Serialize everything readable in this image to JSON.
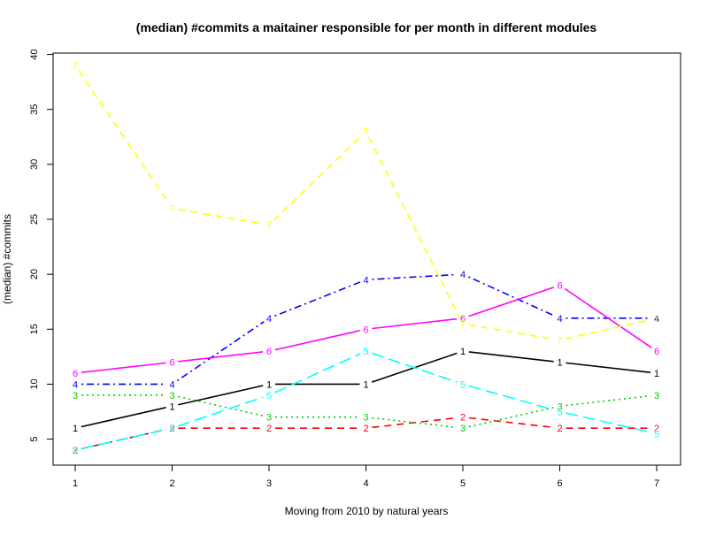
{
  "chart_data": {
    "type": "line",
    "title": "(median) #commits a maitainer responsible for per month in different modules",
    "xlabel": "Moving from 2010 by natural years",
    "ylabel": "(median) #commits",
    "x": [
      1,
      2,
      3,
      4,
      5,
      6,
      7
    ],
    "x_ticks": [
      "1",
      "2",
      "3",
      "4",
      "5",
      "6",
      "7"
    ],
    "y_ticks": [
      "5",
      "10",
      "15",
      "20",
      "25",
      "30",
      "35",
      "40"
    ],
    "xlim": [
      1,
      7
    ],
    "ylim": [
      4,
      39
    ],
    "grid": false,
    "legend": "none",
    "series": [
      {
        "marker": "1",
        "color": "#000000",
        "dash": "solid",
        "values": [
          6,
          8,
          10,
          10,
          13,
          12,
          11
        ]
      },
      {
        "marker": "2",
        "color": "#ff0000",
        "dash": "dashed",
        "values": [
          4,
          6,
          6,
          6,
          7,
          6,
          6
        ]
      },
      {
        "marker": "3",
        "color": "#00cd00",
        "dash": "dotted",
        "values": [
          9,
          9,
          7,
          7,
          6,
          8,
          9
        ]
      },
      {
        "marker": "4",
        "color": "#0000ff",
        "dash": "dotdash",
        "values": [
          10,
          10,
          16,
          19.5,
          20,
          16,
          16
        ]
      },
      {
        "marker": "5",
        "color": "#00ffff",
        "dash": "longdash",
        "values": [
          4,
          6,
          9,
          13,
          10,
          7.5,
          5.5
        ]
      },
      {
        "marker": "6",
        "color": "#ff00ff",
        "dash": "solid",
        "values": [
          11,
          12,
          13,
          15,
          16,
          19,
          13
        ]
      },
      {
        "marker": "7",
        "color": "#ffff00",
        "dash": "dashed",
        "values": [
          39,
          26,
          24.5,
          33,
          15.5,
          14,
          16
        ]
      }
    ]
  }
}
